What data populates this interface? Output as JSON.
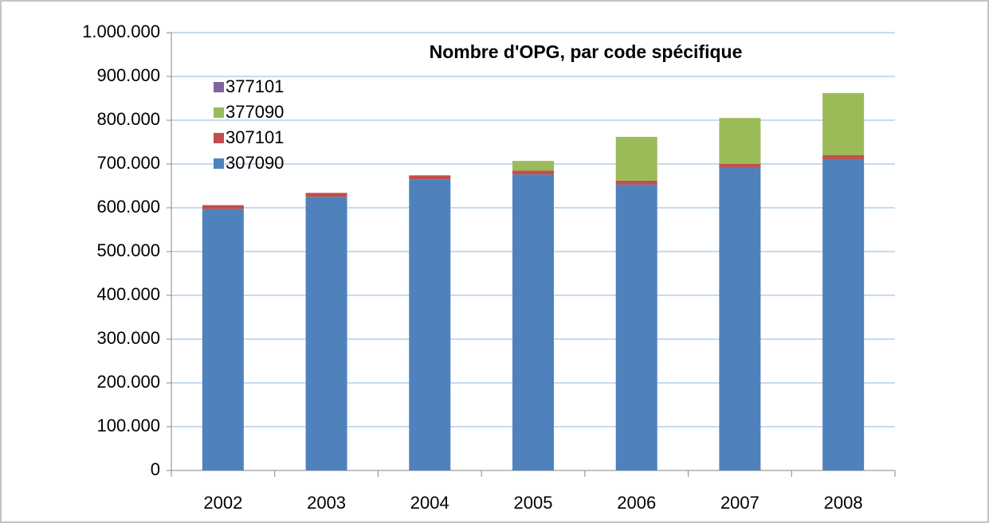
{
  "chart_data": {
    "type": "stacked_bar",
    "title": "Nombre d'OPG, par code spécifique",
    "categories": [
      "2002",
      "2003",
      "2004",
      "2005",
      "2006",
      "2007",
      "2008"
    ],
    "series": [
      {
        "name": "307090",
        "color": "#4f81bd",
        "values": [
          597000,
          625000,
          665000,
          676000,
          653000,
          691000,
          711000
        ]
      },
      {
        "name": "307101",
        "color": "#c0504d",
        "values": [
          9000,
          9000,
          9000,
          9000,
          9000,
          9000,
          9000
        ]
      },
      {
        "name": "377090",
        "color": "#9bbb59",
        "values": [
          0,
          0,
          0,
          22000,
          100000,
          105000,
          142000
        ]
      },
      {
        "name": "377101",
        "color": "#8064a2",
        "values": [
          0,
          0,
          0,
          0,
          0,
          0,
          0
        ]
      }
    ],
    "ylim": [
      0,
      1000000
    ],
    "yticks": [
      0,
      {
        "value": 100000,
        "label": "100.000"
      },
      {
        "value": 200000,
        "label": "200.000"
      },
      {
        "value": 300000,
        "label": "300.000"
      },
      {
        "value": 400000,
        "label": "400.000"
      },
      {
        "value": 500000,
        "label": "500.000"
      },
      {
        "value": 600000,
        "label": "600.000"
      },
      {
        "value": 700000,
        "label": "700.000"
      },
      {
        "value": 800000,
        "label": "800.000"
      },
      {
        "value": 900000,
        "label": "900.000"
      },
      {
        "value": 1000000,
        "label": "1.000.000"
      }
    ],
    "grid": true,
    "legend": "upper left"
  }
}
